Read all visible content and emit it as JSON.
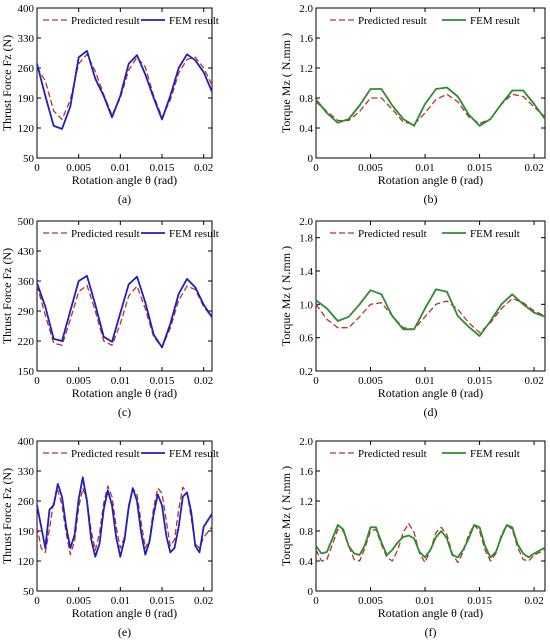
{
  "colors": {
    "predicted": "#b5342a",
    "fem_force": "#1f1fbf",
    "fem_torque": "#2e8b2e"
  },
  "chart_data": [
    {
      "id": "a",
      "type": "line",
      "panel_label": "(a)",
      "xlabel": "Rotation angle θ (rad)",
      "ylabel": "Thrust Force Fz (N)",
      "xlim": [
        0,
        0.021
      ],
      "ylim": [
        50,
        400
      ],
      "xticks": [
        "0",
        "0.005",
        "0.01",
        "0.015",
        "0.02"
      ],
      "yticks": [
        "50",
        "120",
        "190",
        "260",
        "330",
        "400"
      ],
      "legend": "top",
      "series": [
        {
          "name": "Predicted result",
          "style": "dashed",
          "color": "#b5342a",
          "x": [
            0,
            0.001,
            0.002,
            0.003,
            0.004,
            0.005,
            0.006,
            0.007,
            0.008,
            0.009,
            0.01,
            0.011,
            0.012,
            0.013,
            0.014,
            0.015,
            0.016,
            0.017,
            0.018,
            0.019,
            0.02,
            0.021
          ],
          "y": [
            262,
            230,
            160,
            140,
            185,
            270,
            292,
            252,
            198,
            150,
            190,
            255,
            285,
            262,
            195,
            145,
            185,
            248,
            280,
            285,
            260,
            220
          ]
        },
        {
          "name": "FEM result",
          "style": "solid",
          "color": "#1f1fbf",
          "x": [
            0,
            0.001,
            0.002,
            0.003,
            0.004,
            0.005,
            0.006,
            0.007,
            0.008,
            0.009,
            0.01,
            0.011,
            0.012,
            0.013,
            0.014,
            0.015,
            0.016,
            0.017,
            0.018,
            0.019,
            0.02,
            0.021
          ],
          "y": [
            270,
            195,
            125,
            118,
            170,
            285,
            300,
            235,
            195,
            145,
            195,
            270,
            290,
            245,
            190,
            140,
            195,
            260,
            292,
            278,
            250,
            205
          ]
        }
      ]
    },
    {
      "id": "b",
      "type": "line",
      "panel_label": "(b)",
      "xlabel": "Rotation angle θ (rad)",
      "ylabel": "Torque Mz ( N.mm )",
      "xlim": [
        0,
        0.021
      ],
      "ylim": [
        0,
        2.0
      ],
      "xticks": [
        "0",
        "0.005",
        "0.01",
        "0.015",
        "0.02"
      ],
      "yticks": [
        "0",
        "0.4",
        "0.8",
        "1.2",
        "1.6",
        "2.0"
      ],
      "legend": "top",
      "series": [
        {
          "name": "Predicted result",
          "style": "dashed",
          "color": "#b5342a",
          "x": [
            0,
            0.001,
            0.002,
            0.003,
            0.004,
            0.005,
            0.006,
            0.007,
            0.008,
            0.009,
            0.01,
            0.011,
            0.012,
            0.013,
            0.014,
            0.015,
            0.016,
            0.017,
            0.018,
            0.019,
            0.02,
            0.021
          ],
          "y": [
            0.75,
            0.62,
            0.5,
            0.5,
            0.62,
            0.8,
            0.8,
            0.65,
            0.48,
            0.45,
            0.6,
            0.78,
            0.85,
            0.75,
            0.55,
            0.46,
            0.52,
            0.72,
            0.85,
            0.82,
            0.68,
            0.55
          ]
        },
        {
          "name": "FEM result",
          "style": "solid",
          "color": "#2e8b2e",
          "x": [
            0,
            0.001,
            0.002,
            0.003,
            0.004,
            0.005,
            0.006,
            0.007,
            0.008,
            0.009,
            0.01,
            0.011,
            0.012,
            0.013,
            0.014,
            0.015,
            0.016,
            0.017,
            0.018,
            0.019,
            0.02,
            0.021
          ],
          "y": [
            0.78,
            0.6,
            0.47,
            0.52,
            0.7,
            0.92,
            0.92,
            0.7,
            0.52,
            0.43,
            0.72,
            0.92,
            0.94,
            0.82,
            0.58,
            0.43,
            0.52,
            0.72,
            0.9,
            0.9,
            0.72,
            0.52
          ]
        }
      ]
    },
    {
      "id": "c",
      "type": "line",
      "panel_label": "(c)",
      "xlabel": "Rotation angle θ (rad)",
      "ylabel": "Thrust Force Fz (N)",
      "xlim": [
        0,
        0.021
      ],
      "ylim": [
        150,
        500
      ],
      "xticks": [
        "0",
        "0.005",
        "0.01",
        "0.015",
        "0.02"
      ],
      "yticks": [
        "150",
        "220",
        "290",
        "360",
        "430",
        "500"
      ],
      "legend": "top",
      "series": [
        {
          "name": "Predicted result",
          "style": "dashed",
          "color": "#b5342a",
          "x": [
            0,
            0.001,
            0.002,
            0.003,
            0.004,
            0.005,
            0.006,
            0.007,
            0.008,
            0.009,
            0.01,
            0.011,
            0.012,
            0.013,
            0.014,
            0.015,
            0.016,
            0.017,
            0.018,
            0.019,
            0.02,
            0.021
          ],
          "y": [
            350,
            280,
            215,
            210,
            270,
            335,
            350,
            290,
            220,
            210,
            260,
            325,
            348,
            295,
            230,
            205,
            250,
            315,
            348,
            340,
            300,
            275
          ]
        },
        {
          "name": "FEM result",
          "style": "solid",
          "color": "#1f1fbf",
          "x": [
            0,
            0.001,
            0.002,
            0.003,
            0.004,
            0.005,
            0.006,
            0.007,
            0.008,
            0.009,
            0.01,
            0.011,
            0.012,
            0.013,
            0.014,
            0.015,
            0.016,
            0.017,
            0.018,
            0.019,
            0.02,
            0.021
          ],
          "y": [
            355,
            300,
            225,
            220,
            290,
            360,
            372,
            305,
            230,
            218,
            285,
            352,
            370,
            310,
            235,
            205,
            260,
            330,
            365,
            345,
            305,
            275
          ]
        }
      ]
    },
    {
      "id": "d",
      "type": "line",
      "panel_label": "(d)",
      "xlabel": "Rotation angle θ (rad)",
      "ylabel": "Torque Mz ( N.mm )",
      "xlim": [
        0,
        0.021
      ],
      "ylim": [
        0.2,
        2.0
      ],
      "xticks": [
        "0",
        "0.005",
        "0.01",
        "0.015",
        "0.02"
      ],
      "yticks": [
        "0.2",
        "0.6",
        "1.0",
        "1.4",
        "1.8",
        "2.0"
      ],
      "legend": "top",
      "series": [
        {
          "name": "Predicted result",
          "style": "dashed",
          "color": "#b5342a",
          "x": [
            0,
            0.001,
            0.002,
            0.003,
            0.004,
            0.005,
            0.006,
            0.007,
            0.008,
            0.009,
            0.01,
            0.011,
            0.012,
            0.013,
            0.014,
            0.015,
            0.016,
            0.017,
            0.018,
            0.019,
            0.02,
            0.021
          ],
          "y": [
            1.0,
            0.82,
            0.72,
            0.72,
            0.85,
            1.0,
            1.02,
            0.86,
            0.72,
            0.7,
            0.85,
            1.0,
            1.04,
            0.94,
            0.78,
            0.66,
            0.78,
            0.95,
            1.07,
            1.02,
            0.92,
            0.86
          ]
        },
        {
          "name": "FEM result",
          "style": "solid",
          "color": "#2e8b2e",
          "x": [
            0,
            0.001,
            0.002,
            0.003,
            0.004,
            0.005,
            0.006,
            0.007,
            0.008,
            0.009,
            0.01,
            0.011,
            0.012,
            0.013,
            0.014,
            0.015,
            0.016,
            0.017,
            0.018,
            0.019,
            0.02,
            0.021
          ],
          "y": [
            1.05,
            0.95,
            0.8,
            0.85,
            1.0,
            1.17,
            1.12,
            0.86,
            0.7,
            0.7,
            0.95,
            1.18,
            1.15,
            0.86,
            0.73,
            0.62,
            0.8,
            1.0,
            1.12,
            1.0,
            0.9,
            0.85
          ]
        }
      ]
    },
    {
      "id": "e",
      "type": "line",
      "panel_label": "(e)",
      "xlabel": "Rotation angle θ (rad)",
      "ylabel": "Thrust Force Fz (N)",
      "xlim": [
        0,
        0.021
      ],
      "ylim": [
        50,
        400
      ],
      "xticks": [
        "0",
        "0.005",
        "0.01",
        "0.015",
        "0.02"
      ],
      "yticks": [
        "50",
        "120",
        "190",
        "260",
        "330",
        "400"
      ],
      "legend": "top",
      "series": [
        {
          "name": "Predicted result",
          "style": "dashed",
          "color": "#b5342a",
          "x": [
            0,
            0.0005,
            0.001,
            0.0015,
            0.002,
            0.0025,
            0.003,
            0.0035,
            0.004,
            0.0045,
            0.005,
            0.0055,
            0.006,
            0.0065,
            0.007,
            0.0075,
            0.008,
            0.0085,
            0.009,
            0.0095,
            0.01,
            0.0105,
            0.011,
            0.0115,
            0.012,
            0.0125,
            0.013,
            0.0135,
            0.014,
            0.0145,
            0.015,
            0.0155,
            0.016,
            0.0165,
            0.017,
            0.0175,
            0.018,
            0.0185,
            0.019,
            0.0195,
            0.02,
            0.021
          ],
          "y": [
            200,
            150,
            140,
            195,
            260,
            285,
            250,
            185,
            135,
            165,
            245,
            290,
            260,
            190,
            145,
            185,
            255,
            295,
            270,
            200,
            150,
            175,
            250,
            290,
            275,
            210,
            150,
            170,
            245,
            290,
            278,
            215,
            155,
            170,
            240,
            292,
            280,
            220,
            160,
            150,
            175,
            200
          ]
        },
        {
          "name": "FEM result",
          "style": "solid",
          "color": "#1f1fbf",
          "x": [
            0,
            0.0005,
            0.001,
            0.0015,
            0.002,
            0.0025,
            0.003,
            0.0035,
            0.004,
            0.0045,
            0.005,
            0.0055,
            0.006,
            0.0065,
            0.007,
            0.0075,
            0.008,
            0.0085,
            0.009,
            0.0095,
            0.01,
            0.0105,
            0.011,
            0.0115,
            0.012,
            0.0125,
            0.013,
            0.0135,
            0.014,
            0.0145,
            0.015,
            0.0155,
            0.016,
            0.0165,
            0.017,
            0.0175,
            0.018,
            0.0185,
            0.019,
            0.0195,
            0.02,
            0.021
          ],
          "y": [
            250,
            200,
            150,
            240,
            250,
            300,
            270,
            200,
            150,
            180,
            265,
            315,
            260,
            170,
            130,
            160,
            240,
            285,
            250,
            175,
            130,
            170,
            245,
            290,
            260,
            185,
            135,
            165,
            230,
            275,
            250,
            180,
            140,
            150,
            200,
            270,
            280,
            235,
            155,
            140,
            200,
            230
          ]
        }
      ]
    },
    {
      "id": "f",
      "type": "line",
      "panel_label": "(f)",
      "xlabel": "Rotation angle θ (rad)",
      "ylabel": "Torque Mz ( N.mm )",
      "xlim": [
        0,
        0.021
      ],
      "ylim": [
        0,
        2.0
      ],
      "xticks": [
        "0",
        "0.005",
        "0.01",
        "0.015",
        "0.02"
      ],
      "yticks": [
        "0",
        "0.4",
        "0.8",
        "1.2",
        "1.6",
        "2.0"
      ],
      "legend": "top",
      "series": [
        {
          "name": "Predicted result",
          "style": "dashed",
          "color": "#b5342a",
          "x": [
            0,
            0.0005,
            0.001,
            0.0015,
            0.002,
            0.0025,
            0.003,
            0.0035,
            0.004,
            0.0045,
            0.005,
            0.0055,
            0.006,
            0.0065,
            0.007,
            0.0075,
            0.008,
            0.0085,
            0.009,
            0.0095,
            0.01,
            0.0105,
            0.011,
            0.0115,
            0.012,
            0.0125,
            0.013,
            0.0135,
            0.014,
            0.0145,
            0.015,
            0.0155,
            0.016,
            0.0165,
            0.017,
            0.0175,
            0.018,
            0.0185,
            0.019,
            0.0195,
            0.02,
            0.021
          ],
          "y": [
            0.55,
            0.4,
            0.42,
            0.62,
            0.82,
            0.8,
            0.6,
            0.42,
            0.4,
            0.58,
            0.8,
            0.82,
            0.62,
            0.45,
            0.4,
            0.55,
            0.78,
            0.9,
            0.78,
            0.5,
            0.38,
            0.55,
            0.78,
            0.85,
            0.75,
            0.5,
            0.38,
            0.52,
            0.75,
            0.88,
            0.8,
            0.55,
            0.4,
            0.5,
            0.75,
            0.88,
            0.82,
            0.58,
            0.42,
            0.4,
            0.48,
            0.55
          ]
        },
        {
          "name": "FEM result",
          "style": "solid",
          "color": "#2e8b2e",
          "x": [
            0,
            0.0005,
            0.001,
            0.0015,
            0.002,
            0.0025,
            0.003,
            0.0035,
            0.004,
            0.0045,
            0.005,
            0.0055,
            0.006,
            0.0065,
            0.007,
            0.0075,
            0.008,
            0.0085,
            0.009,
            0.0095,
            0.01,
            0.0105,
            0.011,
            0.0115,
            0.012,
            0.0125,
            0.013,
            0.0135,
            0.014,
            0.0145,
            0.015,
            0.0155,
            0.016,
            0.0165,
            0.017,
            0.0175,
            0.018,
            0.0185,
            0.019,
            0.0195,
            0.02,
            0.021
          ],
          "y": [
            0.6,
            0.5,
            0.52,
            0.7,
            0.88,
            0.82,
            0.6,
            0.5,
            0.48,
            0.62,
            0.85,
            0.85,
            0.65,
            0.48,
            0.55,
            0.65,
            0.72,
            0.74,
            0.7,
            0.52,
            0.45,
            0.55,
            0.72,
            0.8,
            0.7,
            0.48,
            0.45,
            0.55,
            0.7,
            0.88,
            0.85,
            0.6,
            0.45,
            0.52,
            0.72,
            0.88,
            0.85,
            0.62,
            0.5,
            0.45,
            0.5,
            0.58
          ]
        }
      ]
    }
  ]
}
